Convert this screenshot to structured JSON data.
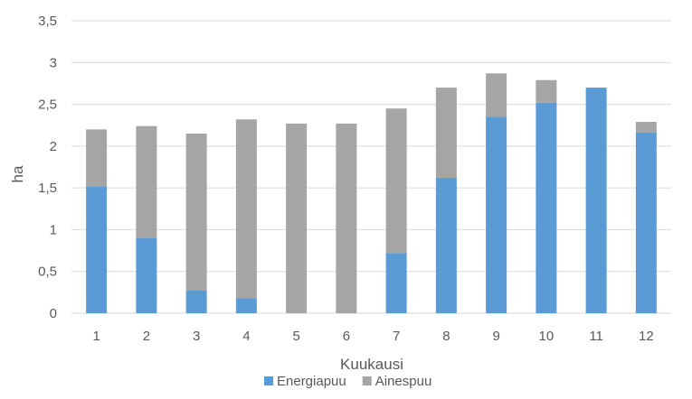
{
  "chart_data": {
    "type": "bar",
    "stacked": true,
    "title": "",
    "xlabel": "Kuukausi",
    "ylabel": "ha",
    "categories": [
      "1",
      "2",
      "3",
      "4",
      "5",
      "6",
      "7",
      "8",
      "9",
      "10",
      "11",
      "12"
    ],
    "ylim": [
      0,
      3.5
    ],
    "yticks": [
      "0",
      "0,5",
      "1",
      "1,5",
      "2",
      "2,5",
      "3",
      "3,5"
    ],
    "grid": true,
    "legend_position": "bottom",
    "series": [
      {
        "name": "Energiapuu",
        "color": "#5B9BD5",
        "values": [
          1.52,
          0.9,
          0.27,
          0.18,
          0.0,
          0.0,
          0.72,
          1.62,
          2.35,
          2.52,
          2.7,
          2.16
        ]
      },
      {
        "name": "Ainespuu",
        "color": "#A5A5A5",
        "values": [
          0.68,
          1.34,
          1.88,
          2.14,
          2.27,
          2.27,
          1.73,
          1.08,
          0.52,
          0.27,
          0.0,
          0.13
        ]
      }
    ]
  }
}
